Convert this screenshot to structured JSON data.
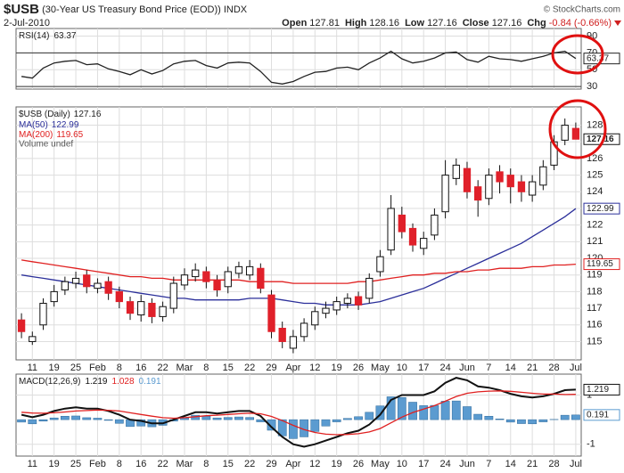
{
  "header": {
    "symbol": "$USB",
    "description": "(30-Year US Treasury Bond Price (EOD))",
    "exchange": "INDX",
    "date": "2-Jul-2010",
    "credit": "© StockCharts.com",
    "fields": [
      {
        "label": "Open",
        "value": 127.81
      },
      {
        "label": "High",
        "value": 128.16
      },
      {
        "label": "Low",
        "value": 127.16
      },
      {
        "label": "Close",
        "value": 127.16
      }
    ],
    "change": {
      "label": "Chg",
      "value": -0.84,
      "percent": "(-0.66%)"
    }
  },
  "chart_data": [
    {
      "type": "line",
      "title": "RSI(14)",
      "categories": [
        null,
        "11",
        null,
        "19",
        null,
        "25",
        null,
        "Feb",
        null,
        "8",
        null,
        "16",
        null,
        "22",
        null,
        "Mar",
        null,
        "8",
        null,
        "15",
        null,
        "22",
        null,
        "29",
        null,
        "Apr",
        null,
        "12",
        null,
        "19",
        null,
        "26",
        null,
        "May",
        null,
        "10",
        null,
        "17",
        null,
        "24",
        null,
        "Jun",
        null,
        "7",
        null,
        "14",
        null,
        "21",
        null,
        "28",
        null,
        "Jul"
      ],
      "ylim": [
        27,
        99
      ],
      "yticks": [
        30,
        50,
        70,
        90
      ],
      "bands": [
        30,
        70
      ],
      "series": [
        {
          "name": "RSI(14)",
          "color": "#222222",
          "last_box": true,
          "values": [
            42,
            40,
            52,
            58,
            60,
            61,
            56,
            57,
            51,
            48,
            44,
            50,
            45,
            49,
            57,
            60,
            61,
            55,
            52,
            58,
            59,
            58,
            48,
            35,
            33,
            36,
            42,
            47,
            48,
            52,
            53,
            50,
            58,
            64,
            72,
            63,
            58,
            60,
            64,
            70,
            71,
            62,
            59,
            66,
            63,
            62,
            60,
            63,
            66,
            70,
            72,
            63.37
          ]
        }
      ]
    },
    {
      "type": "candlestick",
      "title": "$USB (Daily)",
      "grid": true,
      "show_x_labels": true,
      "up_color": "#ffffff",
      "down_color": "#e0202a",
      "legend_extra": "Volume undef",
      "categories": [
        null,
        "11",
        null,
        "19",
        null,
        "25",
        null,
        "Feb",
        null,
        "8",
        null,
        "16",
        null,
        "22",
        null,
        "Mar",
        null,
        "8",
        null,
        "15",
        null,
        "22",
        null,
        "29",
        null,
        "Apr",
        null,
        "12",
        null,
        "19",
        null,
        "26",
        null,
        "May",
        null,
        "10",
        null,
        "17",
        null,
        "24",
        null,
        "Jun",
        null,
        "7",
        null,
        "14",
        null,
        "21",
        null,
        "28",
        null,
        "Jul"
      ],
      "ylim": [
        113.9,
        129.1
      ],
      "yticks": [
        115,
        116,
        117,
        118,
        119,
        120,
        121,
        122,
        123,
        124,
        125,
        126,
        127,
        128
      ],
      "open": [
        116.3,
        115.0,
        116.0,
        117.4,
        118.1,
        118.5,
        119.0,
        118.2,
        118.6,
        118.0,
        117.4,
        116.6,
        117.3,
        116.5,
        117.0,
        118.4,
        118.9,
        119.2,
        118.7,
        118.3,
        119.1,
        119.0,
        119.4,
        117.8,
        115.8,
        114.6,
        115.3,
        116.0,
        116.7,
        116.9,
        117.3,
        117.7,
        117.6,
        119.2,
        120.5,
        122.6,
        121.8,
        120.6,
        121.4,
        122.8,
        124.8,
        125.4,
        124.3,
        123.6,
        125.2,
        125.0,
        124.6,
        123.8,
        124.4,
        125.6,
        127.1,
        127.81
      ],
      "high": [
        116.7,
        115.6,
        117.6,
        118.4,
        118.9,
        119.2,
        119.3,
        118.8,
        118.9,
        118.3,
        117.7,
        117.8,
        117.6,
        117.4,
        118.9,
        119.4,
        119.7,
        119.5,
        119.0,
        119.5,
        119.8,
        119.9,
        119.7,
        118.1,
        116.2,
        115.7,
        116.4,
        117.1,
        117.4,
        117.7,
        117.9,
        118.0,
        119.1,
        120.5,
        123.8,
        123.1,
        122.1,
        121.6,
        123.0,
        125.9,
        126.0,
        125.8,
        124.7,
        125.4,
        125.6,
        125.4,
        125.0,
        125.0,
        125.9,
        127.4,
        128.4,
        128.16
      ],
      "low": [
        115.2,
        114.8,
        115.7,
        117.1,
        117.8,
        118.2,
        117.9,
        117.9,
        117.5,
        117.0,
        116.3,
        116.2,
        116.1,
        116.2,
        116.7,
        118.1,
        118.6,
        118.2,
        117.7,
        117.9,
        118.8,
        118.7,
        117.9,
        115.2,
        114.6,
        114.3,
        115.0,
        115.7,
        116.4,
        116.6,
        117.0,
        116.9,
        117.3,
        118.9,
        120.2,
        121.2,
        120.4,
        120.2,
        121.1,
        122.4,
        124.4,
        123.6,
        122.5,
        123.2,
        123.9,
        123.3,
        123.4,
        123.4,
        124.1,
        125.3,
        126.8,
        127.16
      ],
      "close": [
        115.6,
        115.3,
        117.3,
        118.0,
        118.6,
        118.8,
        118.3,
        118.5,
        117.9,
        117.4,
        116.7,
        117.4,
        116.5,
        117.1,
        118.5,
        119.0,
        119.3,
        118.6,
        118.1,
        119.2,
        119.5,
        119.5,
        118.2,
        115.6,
        115.0,
        115.3,
        116.1,
        116.8,
        117.0,
        117.4,
        117.6,
        117.2,
        118.8,
        120.1,
        123.0,
        121.6,
        120.8,
        121.2,
        122.6,
        125.0,
        125.6,
        124.0,
        123.5,
        125.0,
        124.6,
        124.3,
        124.0,
        124.6,
        125.5,
        127.0,
        128.0,
        127.16
      ],
      "series": [
        {
          "name": "MA(50)",
          "color": "#2b2f9a",
          "last_box": true,
          "values": [
            119.0,
            118.9,
            118.8,
            118.7,
            118.6,
            118.5,
            118.4,
            118.3,
            118.2,
            118.1,
            118.0,
            117.9,
            117.8,
            117.7,
            117.6,
            117.6,
            117.5,
            117.5,
            117.5,
            117.5,
            117.5,
            117.6,
            117.6,
            117.6,
            117.5,
            117.4,
            117.3,
            117.3,
            117.2,
            117.2,
            117.2,
            117.2,
            117.3,
            117.4,
            117.6,
            117.8,
            118.0,
            118.2,
            118.5,
            118.8,
            119.1,
            119.4,
            119.7,
            120.0,
            120.3,
            120.6,
            120.9,
            121.3,
            121.7,
            122.1,
            122.5,
            122.99
          ]
        },
        {
          "name": "MA(200)",
          "color": "#e02020",
          "last_box": true,
          "values": [
            119.9,
            119.8,
            119.7,
            119.6,
            119.5,
            119.4,
            119.3,
            119.2,
            119.1,
            119.0,
            118.9,
            118.9,
            118.8,
            118.8,
            118.7,
            118.7,
            118.7,
            118.7,
            118.7,
            118.7,
            118.7,
            118.6,
            118.6,
            118.6,
            118.6,
            118.5,
            118.5,
            118.5,
            118.5,
            118.5,
            118.5,
            118.6,
            118.6,
            118.7,
            118.8,
            118.9,
            119.0,
            119.0,
            119.1,
            119.1,
            119.2,
            119.2,
            119.3,
            119.3,
            119.4,
            119.4,
            119.4,
            119.5,
            119.5,
            119.6,
            119.6,
            119.65
          ]
        }
      ]
    },
    {
      "type": "line",
      "title": "MACD(12,26,9)",
      "show_x_labels": true,
      "categories": [
        null,
        "11",
        null,
        "19",
        null,
        "25",
        null,
        "Feb",
        null,
        "8",
        null,
        "16",
        null,
        "22",
        null,
        "Mar",
        null,
        "8",
        null,
        "15",
        null,
        "22",
        null,
        "29",
        null,
        "Apr",
        null,
        "12",
        null,
        "19",
        null,
        "26",
        null,
        "May",
        null,
        "10",
        null,
        "17",
        null,
        "24",
        null,
        "Jun",
        null,
        "7",
        null,
        "14",
        null,
        "21",
        null,
        "28",
        null,
        "Jul"
      ],
      "ylim": [
        -1.48,
        1.85
      ],
      "yticks": [
        -1,
        1
      ],
      "series": [
        {
          "name": "Histogram",
          "kind": "histogram",
          "color": "#5b9bd0",
          "last_box": true,
          "values": [
            -0.1,
            -0.17,
            -0.06,
            0.07,
            0.14,
            0.15,
            0.08,
            0.06,
            -0.03,
            -0.15,
            -0.28,
            -0.26,
            -0.29,
            -0.23,
            -0.06,
            0.07,
            0.18,
            0.14,
            0.07,
            0.09,
            0.11,
            0.09,
            -0.09,
            -0.43,
            -0.66,
            -0.77,
            -0.7,
            -0.48,
            -0.26,
            -0.09,
            0.05,
            0.12,
            0.3,
            0.56,
            0.93,
            0.9,
            0.71,
            0.57,
            0.58,
            0.75,
            0.76,
            0.53,
            0.22,
            0.14,
            0.03,
            -0.1,
            -0.16,
            -0.17,
            -0.09,
            0.01,
            0.18,
            0.191
          ]
        },
        {
          "name": "MACD",
          "color": "#111111",
          "width": 2,
          "last_box": true,
          "values": [
            0.2,
            0.1,
            0.2,
            0.35,
            0.45,
            0.5,
            0.45,
            0.45,
            0.35,
            0.2,
            0.0,
            -0.05,
            -0.15,
            -0.15,
            0.0,
            0.15,
            0.3,
            0.3,
            0.25,
            0.3,
            0.35,
            0.35,
            0.15,
            -0.3,
            -0.7,
            -1.0,
            -1.1,
            -1.0,
            -0.85,
            -0.7,
            -0.55,
            -0.45,
            -0.2,
            0.2,
            0.8,
            1.0,
            1.0,
            1.0,
            1.15,
            1.5,
            1.7,
            1.6,
            1.35,
            1.3,
            1.2,
            1.05,
            0.95,
            0.9,
            0.95,
            1.05,
            1.2,
            1.219
          ]
        },
        {
          "name": "Signal",
          "color": "#e02020",
          "values": [
            0.3,
            0.27,
            0.26,
            0.28,
            0.31,
            0.35,
            0.37,
            0.39,
            0.38,
            0.35,
            0.28,
            0.21,
            0.14,
            0.08,
            0.06,
            0.08,
            0.12,
            0.16,
            0.18,
            0.21,
            0.24,
            0.26,
            0.24,
            0.13,
            -0.04,
            -0.23,
            -0.4,
            -0.52,
            -0.59,
            -0.61,
            -0.6,
            -0.57,
            -0.5,
            -0.36,
            -0.13,
            0.1,
            0.29,
            0.43,
            0.57,
            0.75,
            0.94,
            1.07,
            1.13,
            1.16,
            1.17,
            1.15,
            1.11,
            1.07,
            1.04,
            1.04,
            1.02,
            1.028
          ]
        }
      ]
    }
  ]
}
